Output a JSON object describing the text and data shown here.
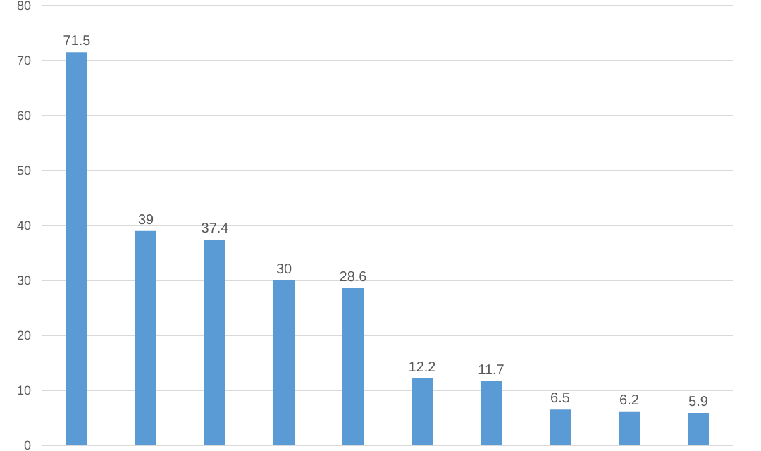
{
  "chart_data": {
    "type": "bar",
    "categories": [
      null,
      null,
      null,
      null,
      null,
      null,
      null,
      null,
      null,
      null
    ],
    "values": [
      71.5,
      39,
      37.4,
      30,
      28.6,
      12.2,
      11.7,
      6.5,
      6.2,
      5.9
    ],
    "color": "#5b9bd5",
    "ylim": [
      0,
      80
    ],
    "yticks": [
      0,
      10,
      20,
      30,
      40,
      50,
      60,
      70,
      80
    ],
    "grid": "y",
    "data_labels": true,
    "tick_labels": "y"
  }
}
